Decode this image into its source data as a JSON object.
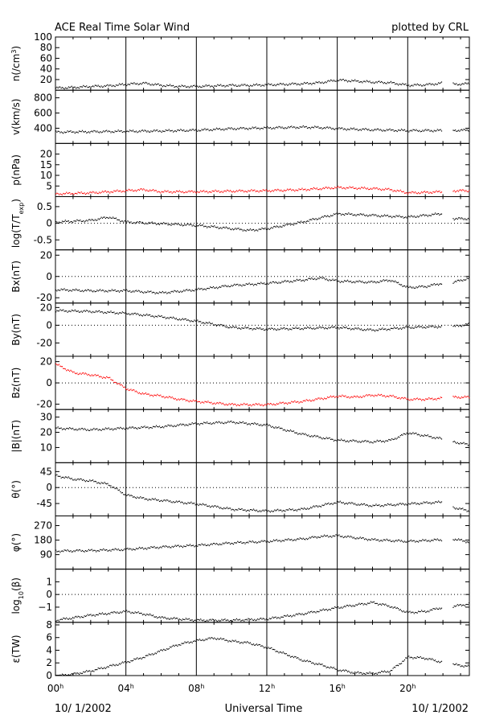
{
  "header": {
    "title": "ACE Real Time Solar Wind",
    "credit": "plotted by CRL"
  },
  "footer": {
    "start_date": "10/ 1/2002",
    "xlabel": "Universal Time",
    "end_date": "10/ 1/2002"
  },
  "colors": {
    "trace": "#000000",
    "highlight": "#ff0000",
    "frame": "#000000"
  },
  "chart_data": {
    "type": "line",
    "x_unit": "hours UT",
    "xlim": [
      0,
      23.5
    ],
    "x_ticks": [
      {
        "value": 0,
        "label": "00",
        "sup": "h"
      },
      {
        "value": 4,
        "label": "04",
        "sup": "h"
      },
      {
        "value": 8,
        "label": "08",
        "sup": "h"
      },
      {
        "value": 12,
        "label": "12",
        "sup": "h"
      },
      {
        "value": 16,
        "label": "16",
        "sup": "h"
      },
      {
        "value": 20,
        "label": "20",
        "sup": "h"
      }
    ],
    "vertical_grid_hours": [
      4,
      8,
      12,
      16,
      20
    ],
    "panels": [
      {
        "id": "density",
        "ylabel": "n(/cm",
        "ylabel_sup": "3",
        "ylabel_tail": ")",
        "ylim": [
          0,
          100
        ],
        "ticks": [
          20,
          40,
          60,
          80,
          100
        ],
        "dotted_zero": false,
        "color": "#000000",
        "series": [
          [
            0,
            5
          ],
          [
            1,
            6
          ],
          [
            2,
            8
          ],
          [
            3,
            9
          ],
          [
            4,
            12
          ],
          [
            5,
            14
          ],
          [
            6,
            10
          ],
          [
            7,
            8
          ],
          [
            8,
            8
          ],
          [
            9,
            9
          ],
          [
            10,
            10
          ],
          [
            11,
            10
          ],
          [
            12,
            11
          ],
          [
            13,
            12
          ],
          [
            14,
            13
          ],
          [
            15,
            15
          ],
          [
            16,
            20
          ],
          [
            17,
            18
          ],
          [
            18,
            16
          ],
          [
            19,
            15
          ],
          [
            20,
            10
          ],
          [
            21,
            11
          ],
          [
            21.9,
            14
          ],
          [
            22.6,
            12
          ],
          [
            23.5,
            13
          ]
        ]
      },
      {
        "id": "speed",
        "ylabel": "v(km/s)",
        "ylim": [
          200,
          900
        ],
        "ticks": [
          400,
          600,
          800
        ],
        "dotted_zero": false,
        "color": "#000000",
        "series": [
          [
            0,
            355
          ],
          [
            2,
            360
          ],
          [
            4,
            365
          ],
          [
            6,
            370
          ],
          [
            8,
            380
          ],
          [
            10,
            400
          ],
          [
            12,
            410
          ],
          [
            14,
            420
          ],
          [
            15,
            415
          ],
          [
            16,
            400
          ],
          [
            18,
            385
          ],
          [
            20,
            375
          ],
          [
            21.9,
            375
          ],
          [
            22.6,
            378
          ],
          [
            23.5,
            380
          ]
        ]
      },
      {
        "id": "pressure",
        "ylabel": "p(nPa)",
        "ylim": [
          0,
          25
        ],
        "ticks": [
          5,
          10,
          15,
          20
        ],
        "dotted_zero": false,
        "color": "#ff0000",
        "series": [
          [
            0,
            1.5
          ],
          [
            2,
            2
          ],
          [
            4,
            3
          ],
          [
            5,
            3.5
          ],
          [
            6,
            2.5
          ],
          [
            8,
            2.5
          ],
          [
            10,
            2.8
          ],
          [
            12,
            3
          ],
          [
            14,
            3.5
          ],
          [
            16,
            4.5
          ],
          [
            18,
            4
          ],
          [
            19,
            3.5
          ],
          [
            20,
            2
          ],
          [
            21,
            2.2
          ],
          [
            21.9,
            2.5
          ],
          [
            22.6,
            3
          ],
          [
            23.5,
            3
          ]
        ]
      },
      {
        "id": "temperature",
        "ylabel": "log(T/T",
        "ylabel_sub": "exp",
        "ylabel_tail": ")",
        "ylim": [
          -0.8,
          0.8
        ],
        "ticks": [
          -0.5,
          0,
          0.5
        ],
        "tick_labels": [
          "-0.5",
          "0",
          "0.5"
        ],
        "dotted_zero": true,
        "color": "#000000",
        "series": [
          [
            0,
            0.05
          ],
          [
            2,
            0.1
          ],
          [
            3,
            0.2
          ],
          [
            4,
            0.05
          ],
          [
            6,
            0
          ],
          [
            8,
            -0.05
          ],
          [
            10,
            -0.15
          ],
          [
            11,
            -0.2
          ],
          [
            12,
            -0.15
          ],
          [
            14,
            0.05
          ],
          [
            16,
            0.3
          ],
          [
            18,
            0.25
          ],
          [
            20,
            0.2
          ],
          [
            21,
            0.25
          ],
          [
            21.9,
            0.3
          ],
          [
            22.6,
            0.15
          ],
          [
            23.5,
            0.15
          ]
        ]
      },
      {
        "id": "bx",
        "ylabel": "Bx(nT)",
        "ylim": [
          -25,
          25
        ],
        "ticks": [
          -20,
          0,
          20
        ],
        "dotted_zero": true,
        "color": "#000000",
        "series": [
          [
            0,
            -12
          ],
          [
            2,
            -13
          ],
          [
            4,
            -13
          ],
          [
            6,
            -15
          ],
          [
            8,
            -12
          ],
          [
            10,
            -8
          ],
          [
            12,
            -6
          ],
          [
            14,
            -3
          ],
          [
            15,
            -1
          ],
          [
            16,
            -4
          ],
          [
            18,
            -5
          ],
          [
            19,
            -3
          ],
          [
            20,
            -10
          ],
          [
            21,
            -9
          ],
          [
            21.9,
            -6
          ],
          [
            22.6,
            -5
          ],
          [
            23.5,
            -1
          ]
        ]
      },
      {
        "id": "by",
        "ylabel": "By(nT)",
        "ylim": [
          -35,
          25
        ],
        "ticks": [
          -20,
          0,
          20
        ],
        "dotted_zero": true,
        "color": "#000000",
        "series": [
          [
            0,
            17
          ],
          [
            2,
            16
          ],
          [
            4,
            14
          ],
          [
            6,
            10
          ],
          [
            8,
            5
          ],
          [
            10,
            -2
          ],
          [
            12,
            -4
          ],
          [
            14,
            -3
          ],
          [
            16,
            -2
          ],
          [
            18,
            -5
          ],
          [
            20,
            -2
          ],
          [
            21.9,
            -1
          ],
          [
            22.6,
            -1
          ],
          [
            23.5,
            2
          ]
        ]
      },
      {
        "id": "bz",
        "ylabel": "Bz(nT)",
        "ylim": [
          -25,
          25
        ],
        "ticks": [
          -20,
          0,
          20
        ],
        "dotted_zero": true,
        "color": "#ff0000",
        "series": [
          [
            0,
            18
          ],
          [
            1,
            10
          ],
          [
            2,
            8
          ],
          [
            3,
            5
          ],
          [
            4,
            -5
          ],
          [
            5,
            -10
          ],
          [
            6,
            -12
          ],
          [
            7,
            -15
          ],
          [
            8,
            -17
          ],
          [
            10,
            -20
          ],
          [
            12,
            -20
          ],
          [
            14,
            -17
          ],
          [
            16,
            -12
          ],
          [
            17,
            -13
          ],
          [
            18,
            -11
          ],
          [
            19,
            -12
          ],
          [
            20,
            -15
          ],
          [
            21,
            -15
          ],
          [
            21.9,
            -14
          ],
          [
            22.6,
            -13
          ],
          [
            23.5,
            -13
          ]
        ]
      },
      {
        "id": "btotal",
        "ylabel": "|B|(nT)",
        "ylim": [
          0,
          35
        ],
        "ticks": [
          10,
          20,
          30
        ],
        "dotted_zero": false,
        "color": "#000000",
        "series": [
          [
            0,
            23
          ],
          [
            2,
            22
          ],
          [
            4,
            23
          ],
          [
            6,
            24
          ],
          [
            8,
            26
          ],
          [
            10,
            27
          ],
          [
            12,
            25
          ],
          [
            14,
            19
          ],
          [
            15,
            17
          ],
          [
            16,
            15
          ],
          [
            18,
            14
          ],
          [
            19,
            15
          ],
          [
            20,
            20
          ],
          [
            21,
            18
          ],
          [
            21.9,
            16
          ],
          [
            22.6,
            14
          ],
          [
            23.5,
            12
          ]
        ]
      },
      {
        "id": "theta",
        "ylabel": "θ(°)",
        "ylim": [
          -80,
          70
        ],
        "ticks": [
          -45,
          0,
          45
        ],
        "dotted_zero": true,
        "color": "#000000",
        "series": [
          [
            0,
            35
          ],
          [
            1,
            25
          ],
          [
            2,
            20
          ],
          [
            3,
            10
          ],
          [
            4,
            -20
          ],
          [
            5,
            -30
          ],
          [
            6,
            -35
          ],
          [
            8,
            -45
          ],
          [
            10,
            -60
          ],
          [
            12,
            -65
          ],
          [
            14,
            -60
          ],
          [
            15,
            -50
          ],
          [
            16,
            -40
          ],
          [
            18,
            -50
          ],
          [
            20,
            -45
          ],
          [
            21,
            -42
          ],
          [
            21.9,
            -40
          ],
          [
            22.6,
            -55
          ],
          [
            23.5,
            -65
          ]
        ]
      },
      {
        "id": "phi",
        "ylabel": "φ(°)",
        "ylim": [
          0,
          330
        ],
        "ticks": [
          90,
          180,
          270
        ],
        "dotted_zero": false,
        "color": "#000000",
        "series": [
          [
            0,
            115
          ],
          [
            2,
            118
          ],
          [
            4,
            125
          ],
          [
            6,
            140
          ],
          [
            8,
            150
          ],
          [
            10,
            165
          ],
          [
            12,
            175
          ],
          [
            14,
            190
          ],
          [
            15,
            205
          ],
          [
            16,
            210
          ],
          [
            18,
            185
          ],
          [
            20,
            175
          ],
          [
            21,
            180
          ],
          [
            21.9,
            185
          ],
          [
            22.6,
            190
          ],
          [
            23.5,
            170
          ]
        ]
      },
      {
        "id": "beta",
        "ylabel": "log",
        "ylabel_sub": "10",
        "ylabel_tail": "(β)",
        "ylim": [
          -2.2,
          2
        ],
        "ticks": [
          -1,
          0,
          1
        ],
        "tick_labels": [
          "−1",
          "0",
          "1"
        ],
        "dotted_zero": true,
        "color": "#000000",
        "series": [
          [
            0,
            -2
          ],
          [
            2,
            -1.6
          ],
          [
            4,
            -1.3
          ],
          [
            5,
            -1.5
          ],
          [
            6,
            -1.8
          ],
          [
            8,
            -2
          ],
          [
            10,
            -2
          ],
          [
            12,
            -1.9
          ],
          [
            14,
            -1.5
          ],
          [
            16,
            -1.0
          ],
          [
            17,
            -0.8
          ],
          [
            18,
            -0.6
          ],
          [
            19,
            -0.9
          ],
          [
            20,
            -1.4
          ],
          [
            21,
            -1.3
          ],
          [
            21.9,
            -1
          ],
          [
            22.6,
            -0.9
          ],
          [
            23.5,
            -0.7
          ]
        ]
      },
      {
        "id": "epsilon",
        "ylabel": "ε(TW)",
        "ylim": [
          0,
          8.4
        ],
        "ticks": [
          0,
          2,
          4,
          6,
          8
        ],
        "dotted_zero": false,
        "color": "#000000",
        "series": [
          [
            0,
            0
          ],
          [
            1,
            0.3
          ],
          [
            2,
            0.8
          ],
          [
            3,
            1.5
          ],
          [
            4,
            2.2
          ],
          [
            5,
            3
          ],
          [
            6,
            4
          ],
          [
            7,
            5
          ],
          [
            8,
            5.6
          ],
          [
            9,
            6
          ],
          [
            10,
            5.5
          ],
          [
            11,
            5.2
          ],
          [
            12,
            4.5
          ],
          [
            13,
            3.5
          ],
          [
            14,
            2.5
          ],
          [
            15,
            1.8
          ],
          [
            16,
            1
          ],
          [
            17,
            0.5
          ],
          [
            18,
            0.4
          ],
          [
            19,
            0.8
          ],
          [
            20,
            3
          ],
          [
            21,
            2.8
          ],
          [
            21.9,
            2.2
          ],
          [
            22.6,
            1.8
          ],
          [
            23.5,
            1.5
          ]
        ]
      }
    ]
  }
}
